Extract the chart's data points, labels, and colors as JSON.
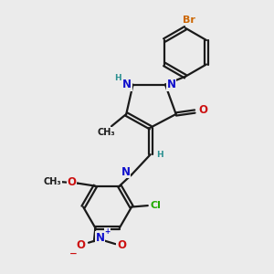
{
  "bg_color": "#ebebeb",
  "bond_color": "#1a1a1a",
  "bond_width": 1.6,
  "atom_colors": {
    "N": "#1010cc",
    "O": "#cc1010",
    "Br": "#cc6600",
    "Cl": "#22aa00",
    "H": "#2a9090",
    "C": "#1a1a1a"
  },
  "font_size": 8.5,
  "fig_size": [
    3.0,
    3.0
  ],
  "dpi": 100
}
